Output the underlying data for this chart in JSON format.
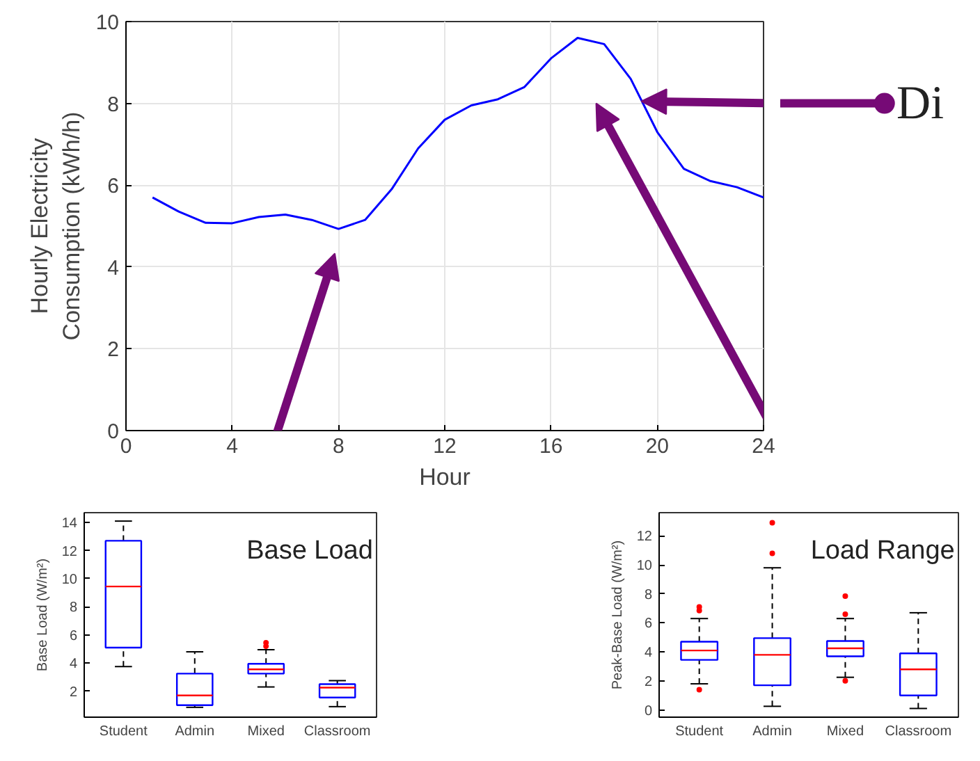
{
  "chart_data": [
    {
      "type": "line",
      "xlabel": "Hour",
      "ylabel": "Hourly Electricity\nConsumption (kWh/h)",
      "x": [
        1,
        2,
        3,
        4,
        5,
        6,
        7,
        8,
        9,
        10,
        11,
        12,
        13,
        14,
        15,
        16,
        17,
        18,
        19,
        20,
        21,
        22,
        23,
        24
      ],
      "series": [
        {
          "color": "#0000ff",
          "values": [
            5.7,
            5.35,
            5.08,
            5.07,
            5.22,
            5.28,
            5.15,
            4.93,
            5.15,
            5.9,
            6.9,
            7.6,
            7.95,
            8.1,
            8.4,
            9.1,
            9.6,
            9.45,
            8.6,
            7.3,
            6.4,
            6.1,
            5.95,
            5.7
          ]
        }
      ],
      "xlim": [
        0,
        24
      ],
      "ylim": [
        0,
        10
      ],
      "xticks": [
        0,
        4,
        8,
        12,
        16,
        20,
        24
      ],
      "yticks": [
        0,
        2,
        4,
        6,
        8,
        10
      ],
      "grid": true,
      "marker": "none",
      "line_style": "solid",
      "annotations": [
        "Di"
      ]
    },
    {
      "type": "box",
      "ylabel": "Base Load (W/m²)",
      "categories": [
        "Student",
        "Admin",
        "Mixed",
        "Classroom"
      ],
      "ylim": [
        0.15,
        14.7
      ],
      "yticks": [
        2,
        4,
        6,
        8,
        10,
        12,
        14
      ],
      "grid": false,
      "series": [
        {
          "color": "#0000ff",
          "boxes": [
            {
              "low": 3.75,
              "q1": 5.1,
              "median": 9.45,
              "q3": 12.7,
              "high": 14.1
            },
            {
              "low": 0.85,
              "q1": 1.0,
              "median": 1.7,
              "q3": 3.25,
              "high": 4.8
            },
            {
              "low": 2.3,
              "q1": 3.25,
              "median": 3.55,
              "q3": 3.95,
              "high": 4.95,
              "outliers": [
                5.2,
                5.45
              ]
            },
            {
              "low": 0.9,
              "q1": 1.55,
              "median": 2.25,
              "q3": 2.5,
              "high": 2.75
            }
          ]
        }
      ],
      "annotations": [
        "Base Load"
      ]
    },
    {
      "type": "box",
      "ylabel": "Peak-Base Load (W/m²)",
      "categories": [
        "Student",
        "Admin",
        "Mixed",
        "Classroom"
      ],
      "ylim": [
        -0.5,
        13.6
      ],
      "yticks": [
        0,
        2,
        4,
        6,
        8,
        10,
        12
      ],
      "grid": false,
      "series": [
        {
          "color": "#0000ff",
          "boxes": [
            {
              "low": 1.8,
              "q1": 3.45,
              "median": 4.1,
              "q3": 4.7,
              "high": 6.3,
              "outliers": [
                7.1,
                6.85,
                1.4
              ]
            },
            {
              "low": 0.25,
              "q1": 1.7,
              "median": 3.8,
              "q3": 4.95,
              "high": 9.8,
              "outliers": [
                12.9,
                10.8
              ]
            },
            {
              "low": 2.25,
              "q1": 3.7,
              "median": 4.25,
              "q3": 4.75,
              "high": 6.3,
              "outliers": [
                7.85,
                6.6,
                2.0
              ]
            },
            {
              "low": 0.1,
              "q1": 1.0,
              "median": 2.8,
              "q3": 3.9,
              "high": 6.7
            }
          ]
        }
      ],
      "annotations": [
        "Load Range"
      ]
    }
  ]
}
